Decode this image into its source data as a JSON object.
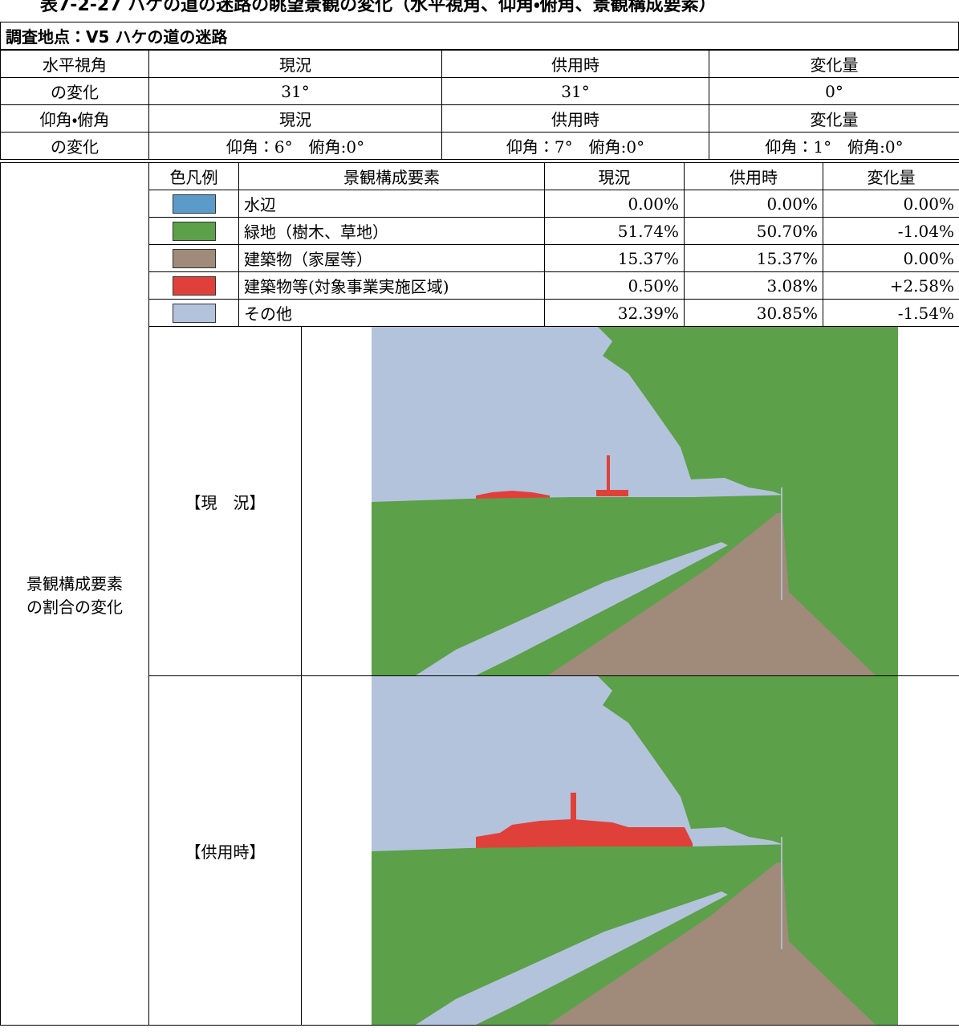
{
  "title": "表7-2-27 ハケの道の迷路の眺望景観の変化（水平視角、仰角・俯角、景観構成要素）",
  "location": {
    "label": "調査地点：V5",
    "name": "ハケの道の迷路"
  },
  "horizontal": {
    "label": [
      "水平視角",
      "の変化"
    ],
    "headers": [
      "現況",
      "供用時",
      "変化量"
    ],
    "values": [
      "31°",
      "31°",
      "0°"
    ]
  },
  "elevation": {
    "label": [
      "仰角・俯角",
      "の変化"
    ],
    "headers": [
      "現況",
      "供用時",
      "変化量"
    ],
    "values": [
      [
        "仰角：6°",
        "俯角:0°"
      ],
      [
        "仰角：7°",
        "俯角:0°"
      ],
      [
        "仰角：1°",
        "俯角:0°"
      ]
    ]
  },
  "composition": {
    "label": [
      "景観構成要素",
      "の割合の変化"
    ],
    "headers": [
      "色凡例",
      "景観構成要素",
      "現況",
      "供用時",
      "変化量"
    ],
    "rows": [
      {
        "color": "#5b9bc9",
        "name": "水辺",
        "values": [
          "0.00%",
          "0.00%",
          "0.00%"
        ]
      },
      {
        "color": "#5ca04a",
        "name": "緑地（樹木、草地）",
        "values": [
          "51.74%",
          "50.70%",
          "-1.04%"
        ]
      },
      {
        "color": "#a08a7a",
        "name": "建築物（家屋等）",
        "values": [
          "15.37%",
          "15.37%",
          "0.00%"
        ]
      },
      {
        "color": "#e0403a",
        "name": "建築物等(対象事業実施区域)",
        "values": [
          "0.50%",
          "3.08%",
          "+2.58%"
        ]
      },
      {
        "color": "#b4c3dc",
        "name": "その他",
        "values": [
          "32.39%",
          "30.85%",
          "-1.54%"
        ]
      }
    ],
    "views": [
      "【現　況】",
      "【供用時】"
    ]
  }
}
